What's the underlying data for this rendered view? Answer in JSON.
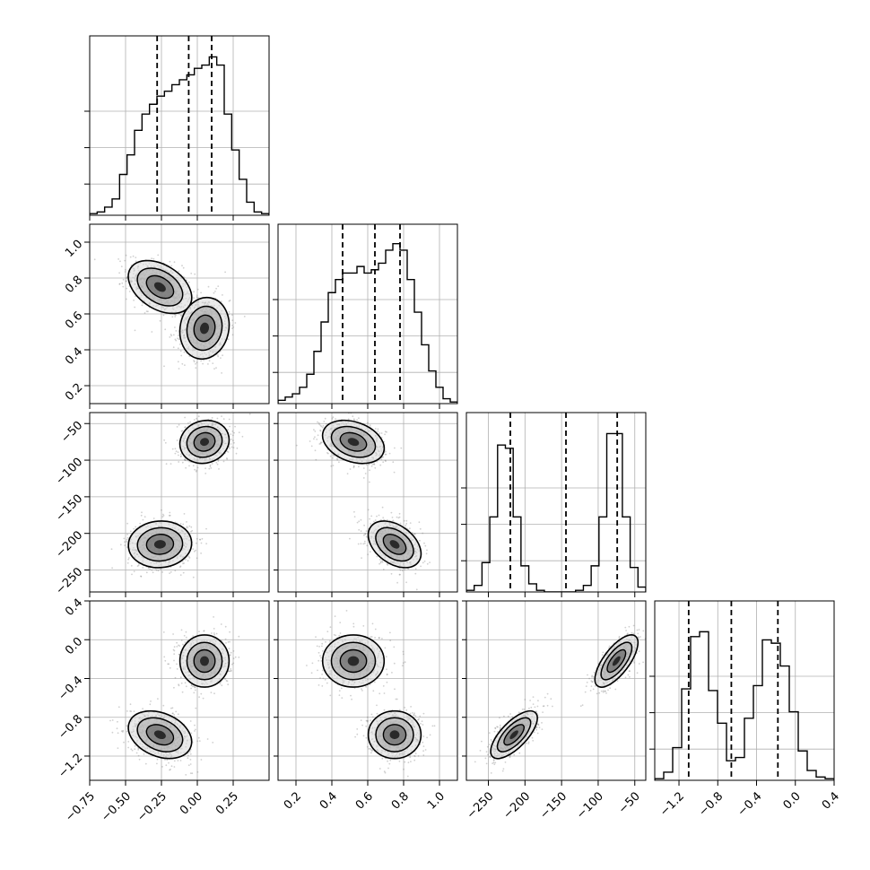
{
  "chart_data": {
    "type": "corner",
    "grid": true,
    "parameters": [
      {
        "range": [
          -0.75,
          0.5
        ],
        "ticks": [
          "−0.75",
          "−0.50",
          "−0.25",
          "0.00",
          "0.25"
        ],
        "tick_values": [
          -0.75,
          -0.5,
          -0.25,
          0.0,
          0.25
        ],
        "hist_counts": [
          0.01,
          0.02,
          0.05,
          0.1,
          0.25,
          0.37,
          0.52,
          0.62,
          0.68,
          0.73,
          0.76,
          0.8,
          0.83,
          0.86,
          0.9,
          0.92,
          0.97,
          0.92,
          0.62,
          0.4,
          0.22,
          0.08,
          0.02,
          0.01
        ],
        "hist_peak_fraction": 0.91,
        "quantile_lines": [
          -0.28,
          -0.06,
          0.1
        ]
      },
      {
        "range": [
          0.1,
          1.1
        ],
        "ticks": [
          "0.2",
          "0.4",
          "0.6",
          "0.8",
          "1.0"
        ],
        "tick_values": [
          0.2,
          0.4,
          0.6,
          0.8,
          1.0
        ],
        "hist_counts": [
          0.02,
          0.04,
          0.06,
          0.1,
          0.18,
          0.32,
          0.5,
          0.68,
          0.76,
          0.8,
          0.8,
          0.84,
          0.8,
          0.82,
          0.86,
          0.94,
          0.98,
          0.94,
          0.76,
          0.56,
          0.36,
          0.2,
          0.1,
          0.03,
          0.01
        ],
        "hist_peak_fraction": 0.91,
        "quantile_lines": [
          0.46,
          0.64,
          0.78
        ]
      },
      {
        "range": [
          -280,
          -35
        ],
        "ticks": [
          "−250",
          "−200",
          "−150",
          "−100",
          "−50"
        ],
        "tick_values": [
          -250,
          -200,
          -150,
          -100,
          -50
        ],
        "hist_counts": [
          0.01,
          0.04,
          0.18,
          0.46,
          0.9,
          0.88,
          0.46,
          0.16,
          0.05,
          0.01,
          0,
          0,
          0,
          0,
          0.01,
          0.04,
          0.16,
          0.46,
          0.97,
          0.97,
          0.46,
          0.15,
          0.03
        ],
        "hist_peak_fraction": 0.91,
        "quantile_lines": [
          -220,
          -144,
          -74
        ]
      },
      {
        "range": [
          -1.45,
          0.4
        ],
        "ticks": [
          "−1.2",
          "−0.8",
          "−0.4",
          "0.0",
          "0.4"
        ],
        "tick_values": [
          -1.2,
          -0.8,
          -0.4,
          0.0,
          0.4
        ],
        "hist_counts": [
          0.01,
          0.05,
          0.2,
          0.56,
          0.88,
          0.91,
          0.55,
          0.35,
          0.12,
          0.14,
          0.38,
          0.58,
          0.86,
          0.84,
          0.7,
          0.42,
          0.18,
          0.06,
          0.02,
          0.01
        ],
        "hist_peak_fraction": 0.91,
        "quantile_lines": [
          -1.1,
          -0.66,
          -0.18
        ]
      }
    ],
    "modes": [
      {
        "weight": 0.5,
        "mean": [
          -0.26,
          0.75,
          -215,
          -0.98
        ],
        "std": [
          0.09,
          0.06,
          13,
          0.1
        ]
      },
      {
        "weight": 0.5,
        "mean": [
          0.05,
          0.52,
          -75,
          -0.22
        ],
        "std": [
          0.07,
          0.07,
          12,
          0.11
        ]
      }
    ],
    "correlations": {
      "mode0": {
        "0-1": -0.4,
        "0-2": 0.05,
        "0-3": -0.3,
        "1-2": -0.4,
        "1-3": 0.0,
        "2-3": 0.7
      },
      "mode1": {
        "0-1": 0.1,
        "0-2": 0.1,
        "0-3": 0.0,
        "1-2": -0.3,
        "1-3": 0.0,
        "2-3": 0.7
      }
    }
  }
}
